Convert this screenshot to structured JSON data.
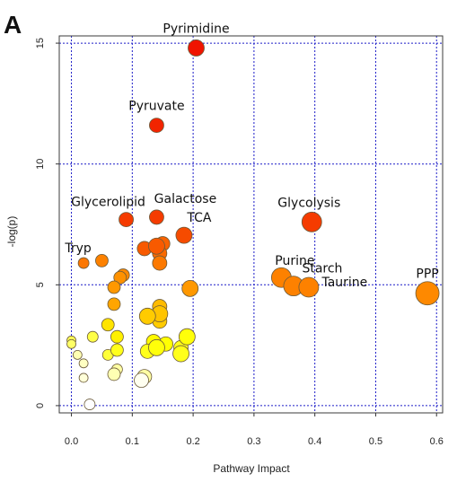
{
  "panel_label": "A",
  "chart_data": {
    "type": "scatter",
    "xlabel": "Pathway Impact",
    "ylabel": "-log(p)",
    "xlim": [
      -0.02,
      0.61
    ],
    "ylim": [
      -0.3,
      15.3
    ],
    "xticks": [
      "0.0",
      "0.1",
      "0.2",
      "0.3",
      "0.4",
      "0.5",
      "0.6"
    ],
    "xtick_values": [
      0,
      0.1,
      0.2,
      0.3,
      0.4,
      0.5,
      0.6
    ],
    "yticks": [
      "0",
      "5",
      "10",
      "15"
    ],
    "ytick_values": [
      0,
      5,
      10,
      15
    ],
    "grid": true,
    "color_scale": [
      "#ffffff",
      "#ffff00",
      "#ff8000",
      "#ff0000"
    ],
    "points": [
      {
        "x": 0.205,
        "y": 14.8,
        "size": 9,
        "c": 1.0,
        "label": "Pyrimidine"
      },
      {
        "x": 0.14,
        "y": 11.6,
        "size": 8,
        "c": 0.96,
        "label": "Pyruvate"
      },
      {
        "x": 0.09,
        "y": 7.7,
        "size": 8,
        "c": 0.9,
        "label": "Glycerolipid"
      },
      {
        "x": 0.14,
        "y": 7.8,
        "size": 8,
        "c": 0.9,
        "label": "Galactose"
      },
      {
        "x": 0.185,
        "y": 7.05,
        "size": 9,
        "c": 0.86,
        "label": "TCA"
      },
      {
        "x": 0.395,
        "y": 7.6,
        "size": 11,
        "c": 0.9,
        "label": "Glycolysis"
      },
      {
        "x": 0.02,
        "y": 5.9,
        "size": 6,
        "c": 0.75,
        "label": "Tryp"
      },
      {
        "x": 0.345,
        "y": 5.3,
        "size": 11,
        "c": 0.72,
        "label": "Purine"
      },
      {
        "x": 0.365,
        "y": 4.95,
        "size": 11,
        "c": 0.72,
        "label": "Starch"
      },
      {
        "x": 0.39,
        "y": 4.9,
        "size": 11,
        "c": 0.72,
        "label": "Taurine"
      },
      {
        "x": 0.585,
        "y": 4.65,
        "size": 13,
        "c": 0.7,
        "label": "PPP"
      },
      {
        "x": 0.05,
        "y": 6.0,
        "size": 7,
        "c": 0.72
      },
      {
        "x": 0.12,
        "y": 6.5,
        "size": 8,
        "c": 0.82
      },
      {
        "x": 0.14,
        "y": 6.6,
        "size": 9,
        "c": 0.82
      },
      {
        "x": 0.15,
        "y": 6.7,
        "size": 8,
        "c": 0.8
      },
      {
        "x": 0.145,
        "y": 6.3,
        "size": 8,
        "c": 0.78
      },
      {
        "x": 0.145,
        "y": 5.9,
        "size": 8,
        "c": 0.74
      },
      {
        "x": 0.085,
        "y": 5.4,
        "size": 7,
        "c": 0.7
      },
      {
        "x": 0.08,
        "y": 5.3,
        "size": 7,
        "c": 0.68
      },
      {
        "x": 0.07,
        "y": 4.9,
        "size": 7,
        "c": 0.66
      },
      {
        "x": 0.07,
        "y": 4.2,
        "size": 7,
        "c": 0.62
      },
      {
        "x": 0.195,
        "y": 4.85,
        "size": 9,
        "c": 0.66
      },
      {
        "x": 0.145,
        "y": 4.1,
        "size": 8,
        "c": 0.55
      },
      {
        "x": 0.145,
        "y": 3.8,
        "size": 9,
        "c": 0.52
      },
      {
        "x": 0.125,
        "y": 3.7,
        "size": 9,
        "c": 0.5
      },
      {
        "x": 0.145,
        "y": 3.5,
        "size": 8,
        "c": 0.5
      },
      {
        "x": 0.06,
        "y": 3.35,
        "size": 7,
        "c": 0.42
      },
      {
        "x": 0.075,
        "y": 2.85,
        "size": 7,
        "c": 0.38
      },
      {
        "x": 0.135,
        "y": 2.65,
        "size": 8,
        "c": 0.35
      },
      {
        "x": 0.155,
        "y": 2.55,
        "size": 8,
        "c": 0.33
      },
      {
        "x": 0.19,
        "y": 2.85,
        "size": 9,
        "c": 0.32
      },
      {
        "x": 0.18,
        "y": 2.4,
        "size": 8,
        "c": 0.3
      },
      {
        "x": 0.18,
        "y": 2.15,
        "size": 9,
        "c": 0.3
      },
      {
        "x": 0.14,
        "y": 2.4,
        "size": 9,
        "c": 0.32
      },
      {
        "x": 0.125,
        "y": 2.25,
        "size": 8,
        "c": 0.3
      },
      {
        "x": 0.075,
        "y": 2.3,
        "size": 7,
        "c": 0.3
      },
      {
        "x": 0.06,
        "y": 2.1,
        "size": 6,
        "c": 0.26
      },
      {
        "x": 0.035,
        "y": 2.85,
        "size": 6,
        "c": 0.24
      },
      {
        "x": 0.0,
        "y": 2.7,
        "size": 5,
        "c": 0.22
      },
      {
        "x": 0.0,
        "y": 2.55,
        "size": 5,
        "c": 0.2
      },
      {
        "x": 0.01,
        "y": 2.1,
        "size": 5,
        "c": 0.1
      },
      {
        "x": 0.02,
        "y": 1.75,
        "size": 5,
        "c": 0.08
      },
      {
        "x": 0.075,
        "y": 1.5,
        "size": 6,
        "c": 0.12
      },
      {
        "x": 0.07,
        "y": 1.3,
        "size": 7,
        "c": 0.1
      },
      {
        "x": 0.02,
        "y": 1.15,
        "size": 5,
        "c": 0.05
      },
      {
        "x": 0.12,
        "y": 1.2,
        "size": 8,
        "c": 0.12
      },
      {
        "x": 0.115,
        "y": 1.05,
        "size": 8,
        "c": 0.02
      },
      {
        "x": 0.03,
        "y": 0.05,
        "size": 6,
        "c": 0.0
      }
    ]
  }
}
